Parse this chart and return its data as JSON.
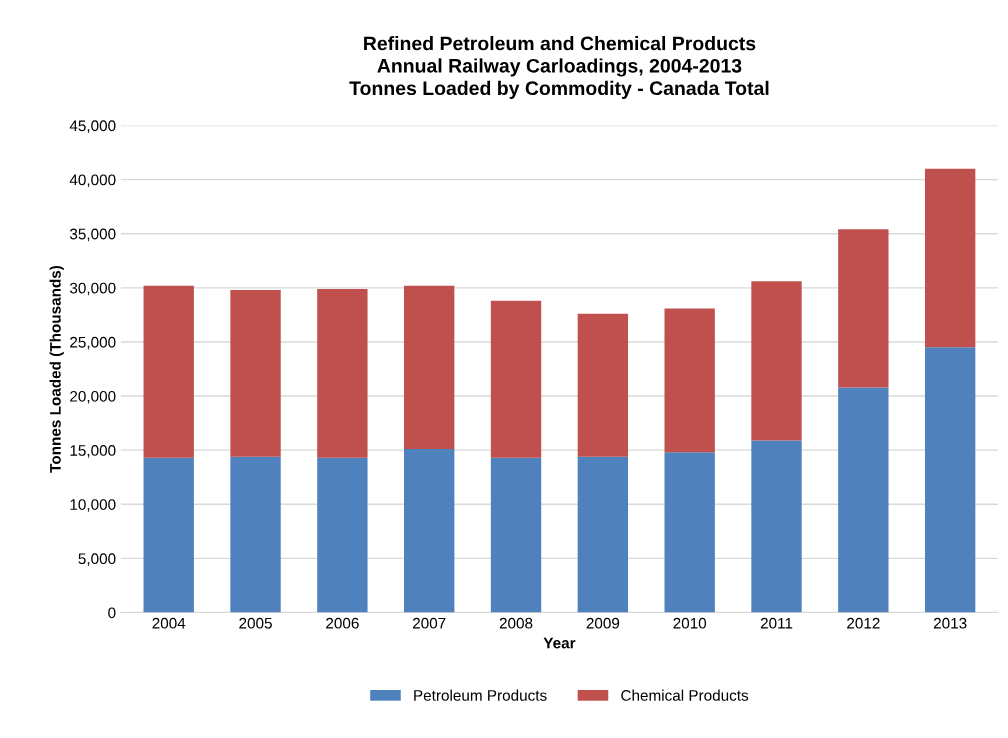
{
  "chart_data": {
    "type": "bar",
    "title": "Refined Petroleum and Chemical Products\nAnnual Railway Carloadings, 2004-2013\nTonnes Loaded by Commodity - Canada Total",
    "xlabel": "Year",
    "ylabel": "Tonnes Loaded (Thousands)",
    "categories": [
      "2004",
      "2005",
      "2006",
      "2007",
      "2008",
      "2009",
      "2010",
      "2011",
      "2012",
      "2013"
    ],
    "stacked": true,
    "series": [
      {
        "name": "Petroleum Products",
        "color": "#4f81bd",
        "values": [
          14300,
          14400,
          14300,
          15100,
          14300,
          14400,
          14800,
          15900,
          20800,
          24500
        ]
      },
      {
        "name": "Chemical Products",
        "color": "#c0504d",
        "values": [
          15900,
          15400,
          15600,
          15100,
          14500,
          13200,
          13300,
          14700,
          14600,
          16500
        ]
      }
    ],
    "ylim": [
      0,
      45000
    ],
    "yticks": [
      {
        "value": 0,
        "label": "0"
      },
      {
        "value": 5000,
        "label": "5,000"
      },
      {
        "value": 10000,
        "label": "10,000"
      },
      {
        "value": 15000,
        "label": "15,000"
      },
      {
        "value": 20000,
        "label": "20,000"
      },
      {
        "value": 25000,
        "label": "25,000"
      },
      {
        "value": 30000,
        "label": "30,000"
      },
      {
        "value": 35000,
        "label": "35,000"
      },
      {
        "value": 40000,
        "label": "40,000"
      },
      {
        "value": 45000,
        "label": "45,000"
      }
    ],
    "grid": "y",
    "legend": "bottom"
  }
}
